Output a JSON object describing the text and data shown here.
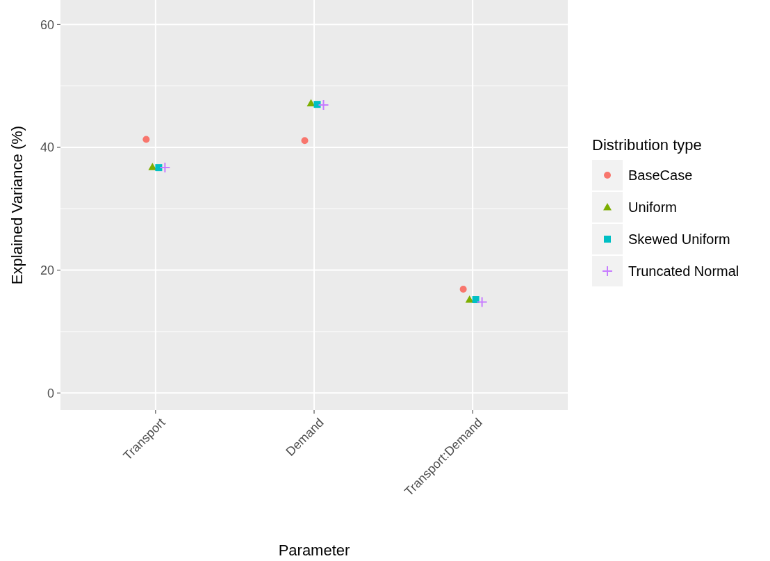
{
  "chart_data": {
    "type": "scatter",
    "xlabel": "Parameter",
    "ylabel": "Explained Variance (%)",
    "legend_title": "Distribution type",
    "categories": [
      "Transport",
      "Demand",
      "Transport:Demand"
    ],
    "series": [
      {
        "name": "BaseCase",
        "color": "#f8766d",
        "marker": "circle",
        "values": [
          41.3,
          41.1,
          16.9
        ]
      },
      {
        "name": "Uniform",
        "color": "#7cae00",
        "marker": "triangle",
        "values": [
          36.8,
          47.2,
          15.2
        ]
      },
      {
        "name": "Skewed Uniform",
        "color": "#00bfc4",
        "marker": "square",
        "values": [
          36.7,
          47.0,
          15.2
        ]
      },
      {
        "name": "Truncated Normal",
        "color": "#c77cff",
        "marker": "cross",
        "values": [
          36.7,
          46.9,
          14.8
        ]
      }
    ],
    "ylim": [
      -2.8,
      64
    ],
    "yticks": [
      0,
      {
        "value": 10,
        "label": null
      },
      20,
      {
        "value": 30,
        "label": null
      },
      40,
      {
        "value": 50,
        "label": null
      },
      60
    ],
    "grid": true,
    "legend": "right"
  }
}
